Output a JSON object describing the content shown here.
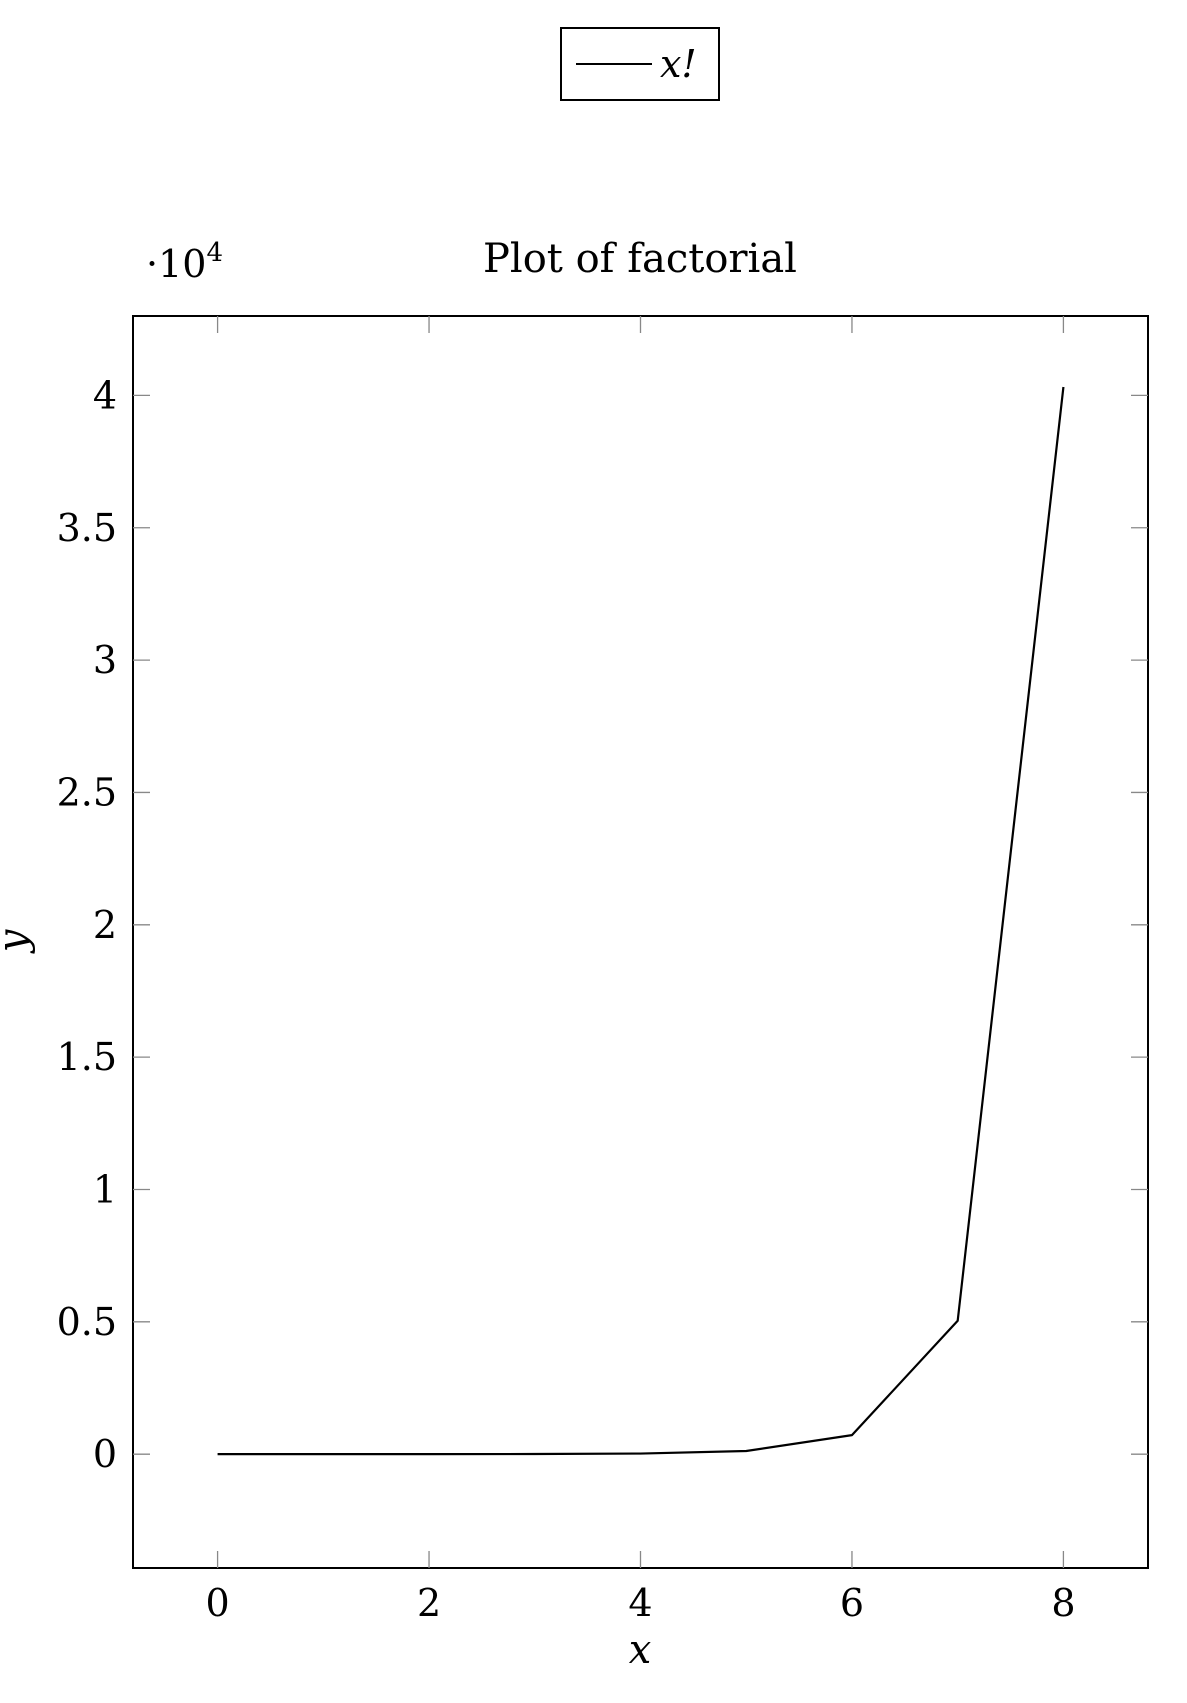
{
  "chart_data": {
    "type": "line",
    "title": "Plot of factorial",
    "xlabel": "x",
    "ylabel": "y",
    "y_multiplier": "·10",
    "y_multiplier_exponent": "4",
    "legend": {
      "entries": [
        "x!"
      ],
      "placement": "top-center, outside plot"
    },
    "xlim": [
      -0.8,
      8.8
    ],
    "ylim": [
      -0.43,
      4.3
    ],
    "x_ticks": [
      0,
      2,
      4,
      6,
      8
    ],
    "x_tick_labels": [
      "0",
      "2",
      "4",
      "6",
      "8"
    ],
    "y_ticks": [
      0,
      0.5,
      1,
      1.5,
      2,
      2.5,
      3,
      3.5,
      4
    ],
    "y_tick_labels": [
      "0",
      "0.5",
      "1",
      "1.5",
      "2",
      "2.5",
      "3",
      "3.5",
      "4"
    ],
    "grid": false,
    "series": [
      {
        "name": "x!",
        "color": "#000000",
        "x": [
          0,
          1,
          2,
          3,
          4,
          5,
          6,
          7,
          8
        ],
        "y": [
          0.0001,
          0.0001,
          0.0002,
          0.0006,
          0.0024,
          0.012,
          0.072,
          0.504,
          4.032
        ]
      }
    ]
  }
}
